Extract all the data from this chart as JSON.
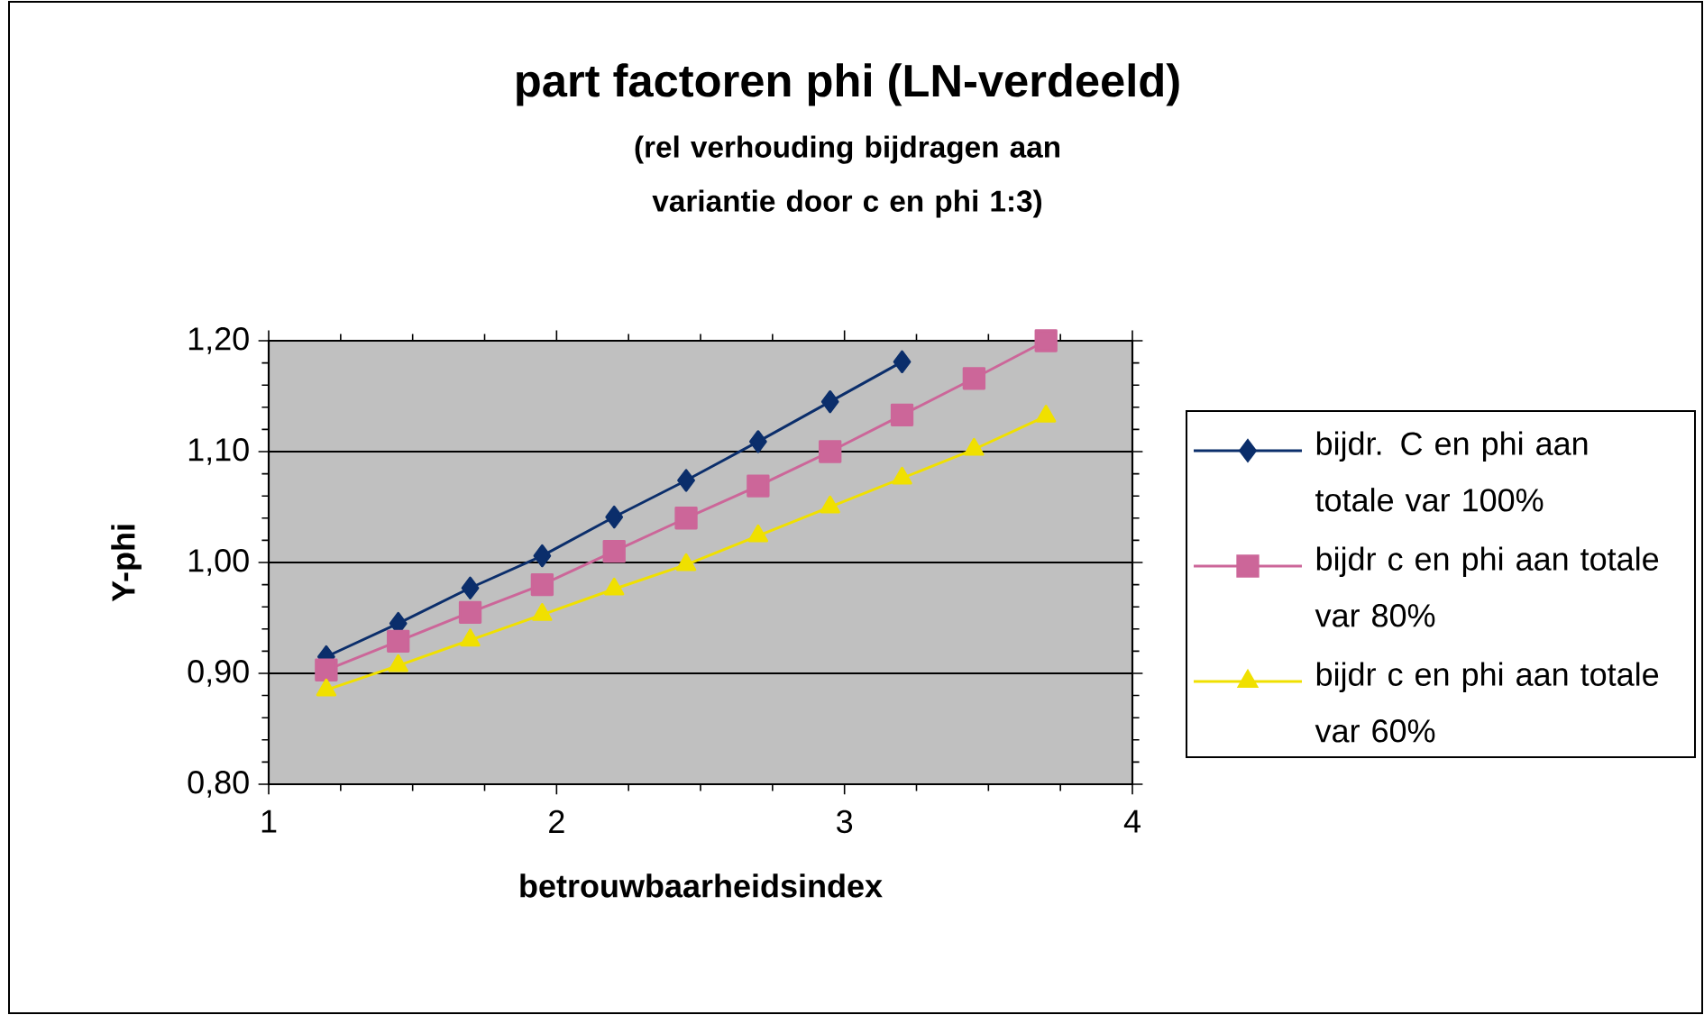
{
  "chart_data": {
    "type": "line",
    "title": "part factoren phi (LN-verdeeld)",
    "subtitle": "(rel verhouding bijdragen aan variantie door c en phi 1:3)",
    "xlabel": "betrouwbaarheidsindex",
    "ylabel": "Y-phi",
    "x": [
      1.2,
      1.45,
      1.7,
      1.95,
      2.2,
      2.45,
      2.7,
      2.95,
      3.2,
      3.45,
      3.7
    ],
    "series": [
      {
        "name": "bijdr. C en phi aan totale var 100%",
        "color": "#0b2e6b",
        "marker": "diamond",
        "values": [
          0.915,
          0.945,
          0.977,
          1.006,
          1.041,
          1.074,
          1.109,
          1.145,
          1.181,
          null,
          null
        ]
      },
      {
        "name": "bijdr c en phi aan totale var 80%",
        "color": "#cc6699",
        "marker": "square",
        "values": [
          0.903,
          0.929,
          0.955,
          0.98,
          1.01,
          1.04,
          1.069,
          1.1,
          1.133,
          1.166,
          1.2
        ]
      },
      {
        "name": "bijdr c en phi aan totale var 60%",
        "color": "#f0e000",
        "marker": "triangle",
        "values": [
          0.885,
          0.907,
          0.93,
          0.953,
          0.976,
          0.998,
          1.024,
          1.05,
          1.076,
          1.102,
          1.132
        ]
      }
    ],
    "xlim": [
      1,
      4
    ],
    "xticks": [
      1,
      2,
      3,
      4
    ],
    "ylim": [
      0.8,
      1.2
    ],
    "yticks": [
      {
        "value": 0.8,
        "label": "0,80"
      },
      {
        "value": 0.9,
        "label": "0,90"
      },
      {
        "value": 1.0,
        "label": "1,00"
      },
      {
        "value": 1.1,
        "label": "1,10"
      },
      {
        "value": 1.2,
        "label": "1,20"
      }
    ],
    "grid": "y",
    "legend": "right",
    "line_style": "solid"
  }
}
